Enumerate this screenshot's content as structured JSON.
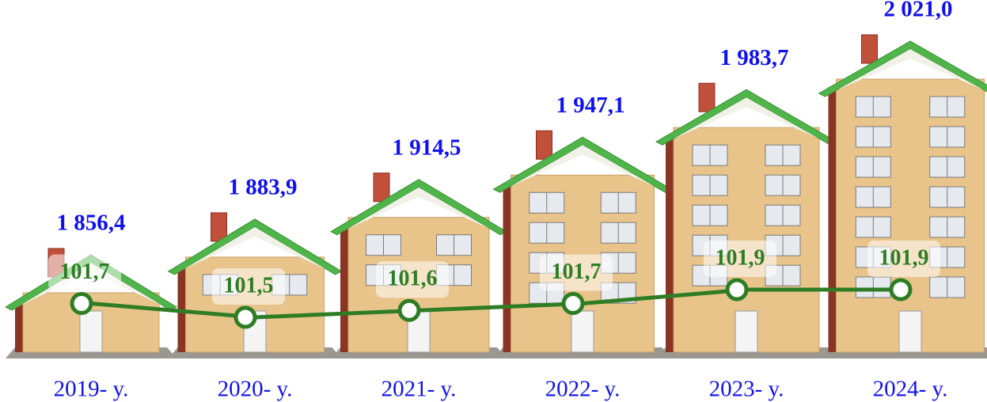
{
  "chart_data": {
    "type": "bar",
    "categories": [
      "2019- y.",
      "2020- y.",
      "2021- y.",
      "2022- y.",
      "2023- y.",
      "2024- y."
    ],
    "values": [
      1856.4,
      1883.9,
      1914.5,
      1947.1,
      1983.7,
      2021.0
    ],
    "value_labels": [
      "1 856,4",
      "1 883,9",
      "1 914,5",
      "1 947,1",
      "1 983,7",
      "2 021,0"
    ],
    "color": "#e8c48a",
    "label_color": "#1010ee",
    "line": {
      "values": [
        101.7,
        101.5,
        101.6,
        101.7,
        101.9,
        101.9
      ],
      "value_labels": [
        "101,7",
        "101,5",
        "101,6",
        "101,7",
        "101,9",
        "101,9"
      ],
      "color": "#2e7d24"
    }
  }
}
